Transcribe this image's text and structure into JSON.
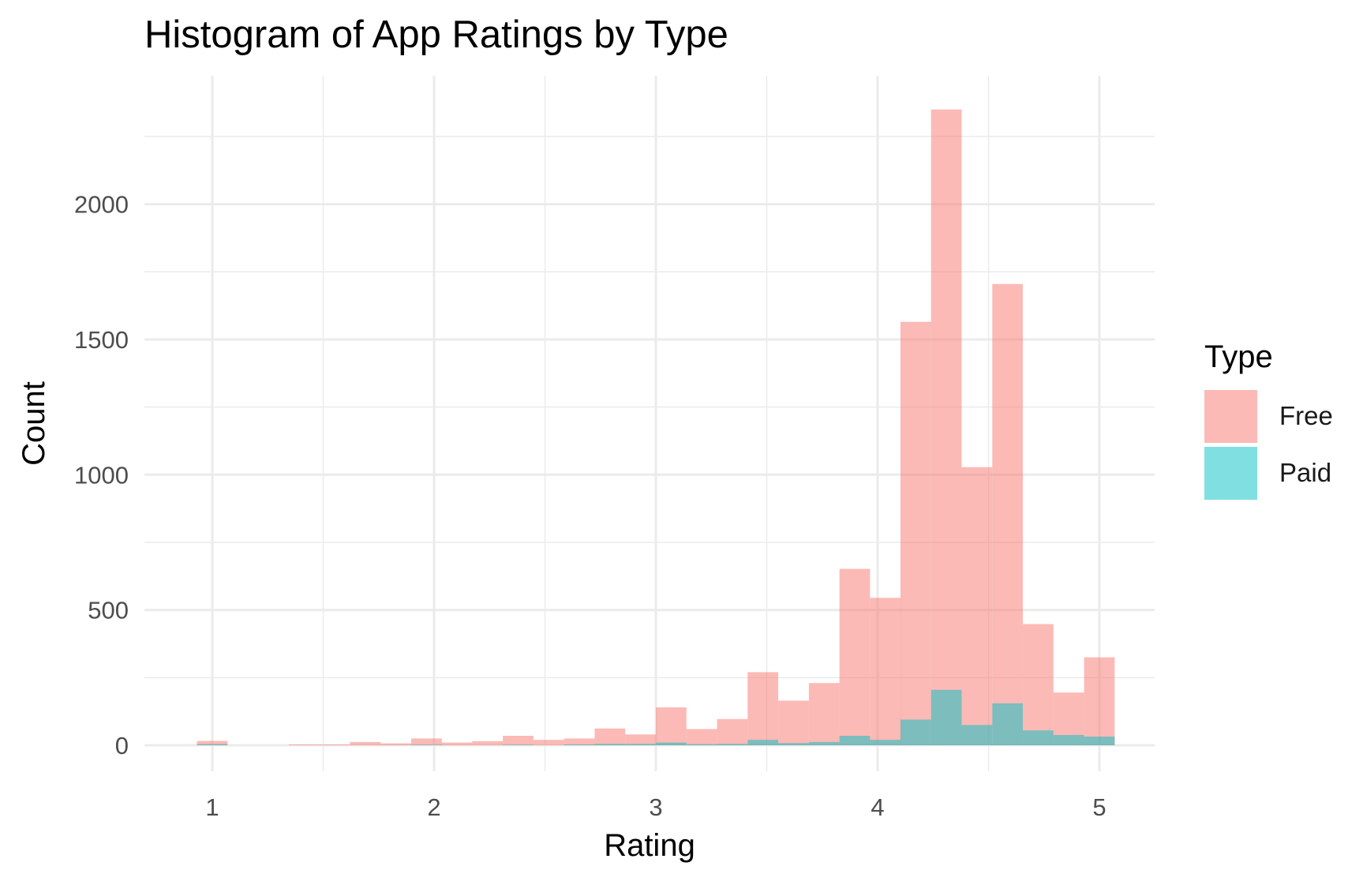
{
  "chart_data": {
    "type": "bar",
    "title": "Histogram of App Ratings by Type",
    "xlabel": "Rating",
    "ylabel": "Count",
    "xlim": [
      0.69,
      5.3
    ],
    "ylim": [
      -90,
      2500
    ],
    "x_ticks": [
      1,
      2,
      3,
      4,
      5
    ],
    "y_ticks": [
      0,
      500,
      1000,
      1500,
      2000
    ],
    "grid": true,
    "legend": {
      "title": "Type",
      "position": "right"
    },
    "bin_width": 0.1379,
    "bin_starts": [
      0.931,
      1.069,
      1.207,
      1.345,
      1.483,
      1.621,
      1.759,
      1.897,
      2.034,
      2.172,
      2.31,
      2.448,
      2.586,
      2.724,
      2.862,
      3.0,
      3.138,
      3.276,
      3.414,
      3.552,
      3.69,
      3.828,
      3.966,
      4.103,
      4.241,
      4.379,
      4.517,
      4.655,
      4.793,
      4.931
    ],
    "series": [
      {
        "name": "Free",
        "color": "#F8766D",
        "values": [
          16,
          0,
          0,
          3,
          3,
          12,
          7,
          25,
          10,
          15,
          35,
          20,
          25,
          62,
          40,
          140,
          60,
          97,
          270,
          165,
          230,
          652,
          545,
          1565,
          2350,
          1028,
          1705,
          448,
          195,
          325
        ]
      },
      {
        "name": "Paid",
        "color": "#00BFC4",
        "values": [
          4,
          0,
          0,
          0,
          0,
          0,
          0,
          2,
          0,
          0,
          2,
          0,
          3,
          5,
          5,
          10,
          4,
          5,
          20,
          8,
          12,
          35,
          20,
          95,
          205,
          75,
          155,
          55,
          38,
          32
        ]
      }
    ]
  }
}
